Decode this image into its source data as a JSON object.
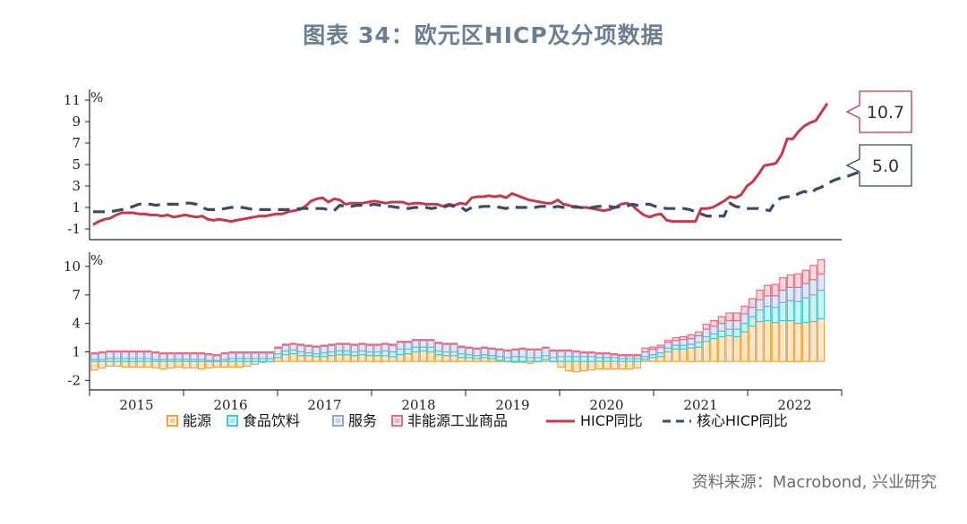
{
  "title": "图表 34：欧元区HICP及分项数据",
  "source": "资料来源：Macrobond, 兴业研究",
  "colors": {
    "hicp": "#c43a4c",
    "core": "#3a4a68",
    "energy": "#f0a33c",
    "food": "#3ccfd2",
    "services": "#8fa5d8",
    "goods": "#ea6a82",
    "title": "#6b7f94"
  },
  "chart_data": [
    {
      "type": "line",
      "unit": "%",
      "x_axis_years": [
        "2015",
        "2016",
        "2017",
        "2018",
        "2019",
        "2020",
        "2021",
        "2022"
      ],
      "ylim": [
        -2,
        12
      ],
      "yticks": [
        11,
        9,
        7,
        5,
        3,
        1,
        -1
      ],
      "series": [
        {
          "name": "HICP同比",
          "values": [
            -0.6,
            -0.3,
            -0.1,
            0.0,
            0.3,
            0.5,
            0.5,
            0.5,
            0.4,
            0.4,
            0.3,
            0.3,
            0.2,
            0.3,
            0.1,
            0.2,
            0.3,
            0.2,
            0.1,
            0.2,
            -0.1,
            -0.2,
            -0.1,
            -0.2,
            -0.3,
            -0.2,
            -0.1,
            0.0,
            0.1,
            0.2,
            0.2,
            0.3,
            0.4,
            0.4,
            0.6,
            0.7,
            0.8,
            1.1,
            1.6,
            1.8,
            1.9,
            1.5,
            1.8,
            1.7,
            1.3,
            1.4,
            1.4,
            1.4,
            1.5,
            1.6,
            1.5,
            1.4,
            1.5,
            1.5,
            1.5,
            1.3,
            1.4,
            1.4,
            1.3,
            1.3,
            1.3,
            1.1,
            1.3,
            1.2,
            1.4,
            1.3,
            1.9,
            2.0,
            2.0,
            2.1,
            2.0,
            2.1,
            1.9,
            2.3,
            2.1,
            1.9,
            1.7,
            1.6,
            1.5,
            1.4,
            1.4,
            1.7,
            1.3,
            1.2,
            1.0,
            1.0,
            1.0,
            0.9,
            0.8,
            0.7,
            0.8,
            1.0,
            1.3,
            1.4,
            1.2,
            0.7,
            0.3,
            0.1,
            0.3,
            0.4,
            -0.2,
            -0.3,
            -0.3,
            -0.3,
            -0.3,
            -0.3,
            0.9,
            0.9,
            1.0,
            1.3,
            1.6,
            2.0,
            1.9,
            2.2,
            3.0,
            3.4,
            4.1,
            4.9,
            5.0,
            5.1,
            5.9,
            7.4,
            7.4,
            8.1,
            8.6,
            8.9,
            9.1,
            9.9,
            10.7
          ]
        },
        {
          "name": "核心HICP同比",
          "values": [
            0.6,
            0.6,
            0.6,
            0.6,
            0.7,
            0.8,
            0.9,
            1.1,
            1.3,
            1.3,
            1.3,
            1.2,
            1.3,
            1.3,
            1.3,
            1.3,
            1.4,
            1.4,
            1.3,
            1.0,
            0.8,
            0.8,
            0.8,
            0.9,
            1.0,
            1.0,
            1.0,
            0.9,
            0.8,
            0.8,
            0.8,
            0.8,
            0.8,
            0.8,
            0.8,
            0.8,
            0.9,
            0.9,
            0.9,
            0.9,
            0.9,
            0.8,
            0.7,
            1.2,
            1.1,
            1.1,
            1.2,
            1.2,
            1.2,
            1.3,
            1.2,
            1.1,
            1.1,
            1.0,
            1.0,
            0.9,
            1.0,
            1.0,
            1.0,
            0.9,
            1.0,
            1.0,
            1.2,
            1.1,
            1.1,
            0.7,
            1.0,
            1.0,
            1.1,
            1.1,
            1.1,
            1.0,
            0.9,
            1.1,
            1.0,
            1.0,
            1.0,
            1.0,
            1.1,
            1.1,
            1.0,
            1.1,
            1.0,
            1.0,
            1.1,
            1.0,
            0.9,
            1.0,
            1.1,
            1.1,
            1.1,
            1.0,
            1.1,
            1.1,
            1.3,
            1.2,
            1.3,
            1.3,
            1.1,
            1.0,
            0.9,
            0.9,
            0.9,
            0.9,
            0.8,
            0.6,
            0.4,
            0.2,
            0.2,
            0.2,
            0.2,
            1.4,
            1.1,
            1.0,
            0.9,
            0.9,
            0.9,
            0.8,
            0.7,
            1.6,
            1.9,
            2.0,
            2.0,
            2.3,
            2.5,
            2.3,
            2.7,
            2.9,
            3.2,
            3.5,
            3.7,
            3.8,
            4.0,
            4.2,
            4.3,
            4.5,
            4.7,
            4.9,
            5.0
          ]
        }
      ],
      "callouts": [
        {
          "series": "HICP同比",
          "label": "10.7"
        },
        {
          "series": "核心HICP同比",
          "label": "5.0"
        }
      ]
    },
    {
      "type": "stacked-bar",
      "unit": "%",
      "x_axis_years": [
        "2015",
        "2016",
        "2017",
        "2018",
        "2019",
        "2020",
        "2021",
        "2022"
      ],
      "ylim": [
        -3,
        11.5
      ],
      "yticks": [
        10,
        7,
        4,
        1,
        -2
      ],
      "series": [
        {
          "name": "能源",
          "values": [
            -0.9,
            -0.7,
            -0.5,
            -0.5,
            -0.6,
            -0.6,
            -0.6,
            -0.6,
            -0.7,
            -0.8,
            -0.7,
            -0.6,
            -0.7,
            -0.7,
            -0.8,
            -0.7,
            -0.6,
            -0.6,
            -0.6,
            -0.6,
            -0.5,
            -0.3,
            -0.1,
            0.0,
            0.4,
            0.7,
            0.8,
            0.6,
            0.6,
            0.5,
            0.5,
            0.6,
            0.7,
            0.7,
            0.6,
            0.7,
            0.6,
            0.6,
            0.6,
            0.5,
            0.7,
            0.8,
            1.0,
            1.1,
            1.0,
            0.7,
            0.6,
            0.6,
            0.4,
            0.4,
            0.3,
            0.4,
            0.3,
            0.1,
            0.0,
            -0.1,
            -0.1,
            -0.2,
            0.0,
            0.2,
            0.0,
            -0.6,
            -1.0,
            -1.1,
            -1.0,
            -0.9,
            -0.8,
            -0.8,
            -0.8,
            -0.8,
            -0.8,
            -0.7,
            0.2,
            0.4,
            0.5,
            1.0,
            1.3,
            1.3,
            1.4,
            1.5,
            2.1,
            2.4,
            2.6,
            2.7,
            2.6,
            3.1,
            3.7,
            4.2,
            4.3,
            4.1,
            4.3,
            4.3,
            4.0,
            4.1,
            4.2,
            4.5
          ]
        },
        {
          "name": "食品饮料",
          "values": [
            0.2,
            0.2,
            0.3,
            0.3,
            0.3,
            0.3,
            0.3,
            0.3,
            0.2,
            0.2,
            0.2,
            0.2,
            0.2,
            0.2,
            0.2,
            0.1,
            0.1,
            0.2,
            0.3,
            0.3,
            0.3,
            0.3,
            0.3,
            0.3,
            0.4,
            0.4,
            0.4,
            0.4,
            0.3,
            0.3,
            0.4,
            0.4,
            0.4,
            0.4,
            0.4,
            0.4,
            0.4,
            0.4,
            0.5,
            0.5,
            0.6,
            0.5,
            0.5,
            0.4,
            0.5,
            0.4,
            0.4,
            0.4,
            0.4,
            0.3,
            0.3,
            0.3,
            0.3,
            0.4,
            0.4,
            0.5,
            0.5,
            0.4,
            0.4,
            0.4,
            0.4,
            0.5,
            0.5,
            0.5,
            0.5,
            0.5,
            0.4,
            0.4,
            0.4,
            0.3,
            0.3,
            0.3,
            0.3,
            0.3,
            0.4,
            0.4,
            0.4,
            0.4,
            0.4,
            0.5,
            0.5,
            0.5,
            0.6,
            0.7,
            0.8,
            0.9,
            1.0,
            1.2,
            1.5,
            1.6,
            1.9,
            2.1,
            2.3,
            2.6,
            2.8,
            3.0
          ]
        },
        {
          "name": "服务",
          "values": [
            0.6,
            0.7,
            0.7,
            0.7,
            0.7,
            0.7,
            0.7,
            0.7,
            0.7,
            0.6,
            0.6,
            0.6,
            0.6,
            0.6,
            0.6,
            0.6,
            0.5,
            0.6,
            0.6,
            0.6,
            0.6,
            0.6,
            0.6,
            0.6,
            0.6,
            0.6,
            0.6,
            0.7,
            0.7,
            0.7,
            0.7,
            0.7,
            0.7,
            0.7,
            0.7,
            0.7,
            0.7,
            0.7,
            0.7,
            0.7,
            0.7,
            0.7,
            0.7,
            0.7,
            0.7,
            0.8,
            0.8,
            0.8,
            0.7,
            0.7,
            0.7,
            0.7,
            0.7,
            0.7,
            0.7,
            0.7,
            0.8,
            0.8,
            0.8,
            0.8,
            0.7,
            0.6,
            0.6,
            0.5,
            0.4,
            0.4,
            0.4,
            0.4,
            0.3,
            0.3,
            0.3,
            0.3,
            0.5,
            0.6,
            0.6,
            0.6,
            0.5,
            0.6,
            0.6,
            0.7,
            0.8,
            0.8,
            0.8,
            0.9,
            0.9,
            1.0,
            1.0,
            1.1,
            1.1,
            1.2,
            1.3,
            1.4,
            1.5,
            1.5,
            1.6,
            1.7
          ]
        },
        {
          "name": "非能源工业商品",
          "values": [
            0.1,
            0.1,
            0.1,
            0.1,
            0.1,
            0.1,
            0.1,
            0.1,
            0.1,
            0.1,
            0.1,
            0.1,
            0.1,
            0.1,
            0.1,
            0.1,
            0.1,
            0.1,
            0.1,
            0.1,
            0.1,
            0.1,
            0.1,
            0.1,
            0.1,
            0.1,
            0.1,
            0.1,
            0.1,
            0.1,
            0.1,
            0.1,
            0.1,
            0.1,
            0.1,
            0.1,
            0.1,
            0.1,
            0.1,
            0.1,
            0.1,
            0.1,
            0.1,
            0.1,
            0.1,
            0.1,
            0.1,
            0.1,
            0.1,
            0.1,
            0.1,
            0.1,
            0.1,
            0.1,
            0.1,
            0.1,
            0.1,
            0.1,
            0.1,
            0.1,
            0.1,
            0.1,
            0.1,
            0.1,
            0.1,
            0.1,
            0.1,
            0.1,
            0.1,
            0.1,
            0.1,
            0.1,
            0.4,
            0.2,
            0.2,
            0.2,
            0.3,
            0.3,
            0.4,
            0.4,
            0.5,
            0.6,
            0.7,
            0.8,
            0.8,
            0.8,
            0.9,
            1.0,
            1.1,
            1.2,
            1.3,
            1.3,
            1.4,
            1.4,
            1.5,
            1.5
          ]
        }
      ]
    }
  ],
  "legend": [
    {
      "label": "能源",
      "kind": "box",
      "color_key": "energy"
    },
    {
      "label": "食品饮料",
      "kind": "box",
      "color_key": "food"
    },
    {
      "label": "服务",
      "kind": "box",
      "color_key": "services"
    },
    {
      "label": "非能源工业商品",
      "kind": "box",
      "color_key": "goods"
    },
    {
      "label": "HICP同比",
      "kind": "line",
      "color_key": "hicp"
    },
    {
      "label": "核心HICP同比",
      "kind": "dash",
      "color_key": "core"
    }
  ]
}
